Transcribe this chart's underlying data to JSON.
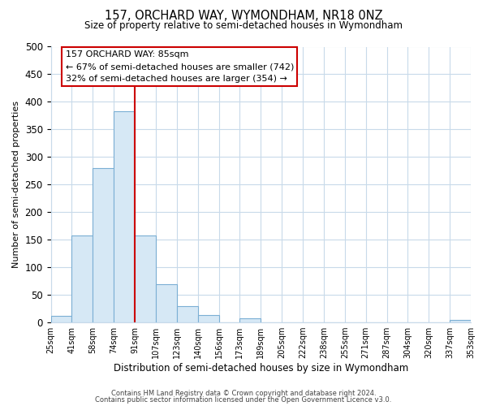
{
  "title": "157, ORCHARD WAY, WYMONDHAM, NR18 0NZ",
  "subtitle": "Size of property relative to semi-detached houses in Wymondham",
  "xlabel": "Distribution of semi-detached houses by size in Wymondham",
  "ylabel": "Number of semi-detached properties",
  "footer_lines": [
    "Contains HM Land Registry data © Crown copyright and database right 2024.",
    "Contains public sector information licensed under the Open Government Licence v3.0."
  ],
  "bin_labels": [
    "25sqm",
    "41sqm",
    "58sqm",
    "74sqm",
    "91sqm",
    "107sqm",
    "123sqm",
    "140sqm",
    "156sqm",
    "173sqm",
    "189sqm",
    "205sqm",
    "222sqm",
    "238sqm",
    "255sqm",
    "271sqm",
    "287sqm",
    "304sqm",
    "320sqm",
    "337sqm",
    "353sqm"
  ],
  "bar_heights": [
    12,
    157,
    280,
    383,
    158,
    70,
    30,
    14,
    0,
    7,
    0,
    0,
    0,
    0,
    0,
    0,
    0,
    0,
    0,
    4
  ],
  "bar_color": "#d6e8f5",
  "bar_edge_color": "#7bafd4",
  "annotation_title": "157 ORCHARD WAY: 85sqm",
  "annotation_line1": "← 67% of semi-detached houses are smaller (742)",
  "annotation_line2": "32% of semi-detached houses are larger (354) →",
  "annotation_box_color": "#ffffff",
  "annotation_box_edge_color": "#cc0000",
  "vline_color": "#cc0000",
  "ylim": [
    0,
    500
  ],
  "yticks": [
    0,
    50,
    100,
    150,
    200,
    250,
    300,
    350,
    400,
    450,
    500
  ],
  "background_color": "#ffffff",
  "grid_color": "#c8daea"
}
